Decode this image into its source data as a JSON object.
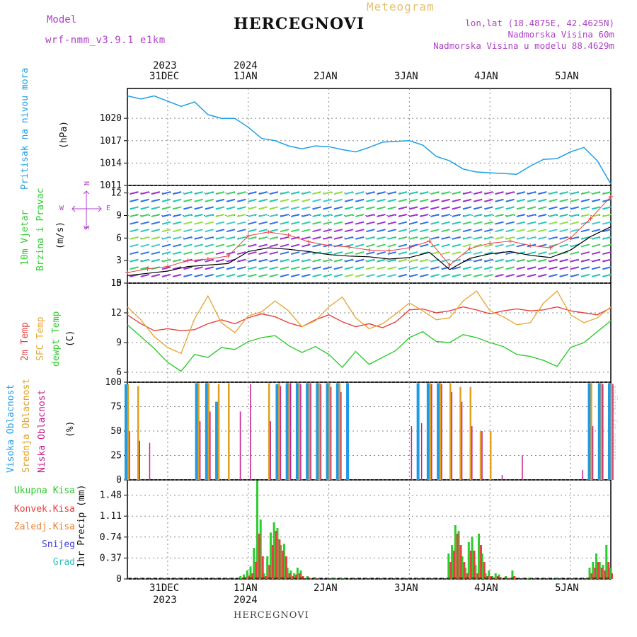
{
  "header": {
    "model_label": "Model",
    "model_name": "wrf-nmm_v3.9.1 e1km",
    "title": "HERCEGNOVI",
    "meteogram": "Meteogram",
    "lonlat": "lon,lat (18.4875E, 42.4625N)",
    "elevation": "Nadmorska Visina 60m",
    "model_elevation": "Nadmorska Visina u modelu 88.4629m",
    "watermark": "made by Angel",
    "footer_station": "HERCEGNOVI"
  },
  "colors": {
    "pressure": "#1ea0e6",
    "temp2m": "#e84040",
    "sfc_temp": "#e8a838",
    "dewpoint": "#2ecc2e",
    "high_cloud": "#1e9be6",
    "mid_cloud": "#e0a020",
    "low_cloud": "#c81e8c",
    "precip_total": "#2ecc2e",
    "precip_conv": "#e84040",
    "gust": "#e84040",
    "wind_speed": "#000000"
  },
  "time_axis": {
    "top_years": [
      "2023",
      "2024"
    ],
    "top_dates": [
      "31DEC",
      "1JAN",
      "2JAN",
      "3JAN",
      "4JAN",
      "5JAN"
    ],
    "bottom_dates": [
      "31DEC",
      "1JAN",
      "2JAN",
      "3JAN",
      "4JAN",
      "5JAN"
    ],
    "bottom_years": [
      "2023",
      "2024"
    ]
  },
  "panels": {
    "pressure": {
      "ylabel_main": "Pritisak na nivou mora",
      "ylabel_unit": "(hPa)",
      "ticks": [
        "1020",
        "1017",
        "1014",
        "1011"
      ]
    },
    "wind": {
      "ylabel_main": "10m Vjetar",
      "ylabel_sub": "Brzina i Pravac",
      "ylabel_unit": "(m/s)",
      "compass_n": "N",
      "compass_w": "W",
      "compass_e": "E",
      "compass_s": "S",
      "ticks": [
        "12",
        "9",
        "6",
        "3",
        "0"
      ]
    },
    "temp": {
      "ylabel_2m": "2m Temp",
      "ylabel_sfc": "SFC Temp",
      "ylabel_dew": "dewpt Temp",
      "ylabel_unit": "(C)",
      "ticks": [
        "15",
        "12",
        "9",
        "6"
      ]
    },
    "cloud": {
      "ylabel_high": "Visoka Oblacnost",
      "ylabel_mid": "Srednja Oblacnost",
      "ylabel_low": "Niska Oblacnost",
      "ylabel_unit": "(%)",
      "ticks": [
        "100",
        "75",
        "50",
        "25",
        "0"
      ]
    },
    "precip": {
      "legend_total": "Ukupna Kisa",
      "legend_conv": "Konvek.Kisa",
      "legend_frz": "Zaledj.Kisa",
      "legend_snow": "Snijeg",
      "legend_grad": "Grad",
      "ylabel": "1hr Precip (mm)",
      "ticks": [
        "1.48",
        "1.11",
        "0.74",
        "0.37",
        "0"
      ]
    }
  },
  "chart_data": [
    {
      "type": "line",
      "name": "pressure",
      "x_unit": "hours from 2023-12-30 12:00",
      "ylim": [
        1011,
        1024
      ],
      "x": [
        0,
        4,
        8,
        12,
        16,
        20,
        24,
        28,
        32,
        36,
        40,
        44,
        48,
        52,
        56,
        60,
        64,
        68,
        72,
        76,
        80,
        84,
        88,
        92,
        96,
        100,
        104,
        108,
        112,
        116,
        120,
        124,
        128,
        132,
        136,
        140,
        144
      ],
      "values": [
        1023.0,
        1022.6,
        1023.0,
        1022.3,
        1021.6,
        1022.2,
        1020.5,
        1020.0,
        1020.0,
        1018.8,
        1017.3,
        1017.0,
        1016.3,
        1015.9,
        1016.3,
        1016.2,
        1015.8,
        1015.5,
        1016.1,
        1016.8,
        1016.9,
        1017.0,
        1016.4,
        1014.9,
        1014.3,
        1013.2,
        1012.8,
        1012.7,
        1012.6,
        1012.5,
        1013.6,
        1014.5,
        1014.6,
        1015.5,
        1016.1,
        1014.3,
        1011.2
      ]
    },
    {
      "type": "line",
      "name": "wind",
      "ylim": [
        0,
        13
      ],
      "x": [
        0,
        6,
        12,
        18,
        24,
        30,
        36,
        42,
        48,
        54,
        60,
        66,
        72,
        78,
        84,
        90,
        96,
        102,
        108,
        114,
        120,
        126,
        132,
        138,
        144
      ],
      "series": [
        {
          "key": "wind_speed",
          "values": [
            1.0,
            1.3,
            1.6,
            2.2,
            2.4,
            2.6,
            4.2,
            4.7,
            4.5,
            4.2,
            3.8,
            3.6,
            3.5,
            3.2,
            3.4,
            4.1,
            1.8,
            3.3,
            3.9,
            4.2,
            3.7,
            3.4,
            4.4,
            6.2,
            7.5
          ]
        },
        {
          "key": "gust",
          "values": [
            1.4,
            1.9,
            2.2,
            3.0,
            3.2,
            3.6,
            6.3,
            6.8,
            6.4,
            5.5,
            5.0,
            4.8,
            4.4,
            4.3,
            4.7,
            5.6,
            2.4,
            4.6,
            5.3,
            5.6,
            5.0,
            4.7,
            6.0,
            8.6,
            11.5
          ]
        }
      ]
    },
    {
      "type": "line",
      "name": "temperature",
      "ylim": [
        5,
        15
      ],
      "x": [
        0,
        4,
        8,
        12,
        16,
        20,
        24,
        28,
        32,
        36,
        40,
        44,
        48,
        52,
        56,
        60,
        64,
        68,
        72,
        76,
        80,
        84,
        88,
        92,
        96,
        100,
        104,
        108,
        112,
        116,
        120,
        124,
        128,
        132,
        136,
        140,
        144
      ],
      "series": [
        {
          "key": "temp2m",
          "values": [
            11.8,
            10.9,
            10.2,
            10.4,
            10.2,
            10.3,
            10.9,
            11.3,
            10.9,
            11.5,
            11.9,
            11.6,
            11.0,
            10.6,
            11.3,
            11.8,
            11.1,
            10.6,
            10.9,
            10.5,
            11.1,
            12.3,
            12.4,
            12.0,
            12.2,
            12.6,
            12.3,
            11.9,
            12.2,
            12.4,
            12.2,
            12.3,
            12.6,
            12.2,
            12.0,
            11.8,
            12.5
          ]
        },
        {
          "key": "sfc_temp",
          "values": [
            12.6,
            11.3,
            9.6,
            8.5,
            7.9,
            11.4,
            13.7,
            11.0,
            10.0,
            11.7,
            12.1,
            13.2,
            12.2,
            10.6,
            11.2,
            12.6,
            13.6,
            11.5,
            10.4,
            10.9,
            11.9,
            13.0,
            12.2,
            11.3,
            11.5,
            13.2,
            14.2,
            12.2,
            11.6,
            10.8,
            11.0,
            13.0,
            14.2,
            11.8,
            11.0,
            11.5,
            12.6
          ]
        },
        {
          "key": "dewpoint",
          "values": [
            10.8,
            9.6,
            8.4,
            7.0,
            6.1,
            7.8,
            7.5,
            8.5,
            8.3,
            9.1,
            9.5,
            9.7,
            8.7,
            8.0,
            8.6,
            7.8,
            6.5,
            8.1,
            6.8,
            7.5,
            8.2,
            9.5,
            10.1,
            9.1,
            9.0,
            9.8,
            9.5,
            9.0,
            8.6,
            7.8,
            7.6,
            7.2,
            6.6,
            8.5,
            9.0,
            10.1,
            11.2
          ]
        }
      ]
    },
    {
      "type": "bar",
      "name": "cloud_cover",
      "ylim": [
        0,
        100
      ],
      "x": [
        0,
        3,
        6,
        9,
        12,
        15,
        18,
        21,
        24,
        27,
        30,
        33,
        36,
        39,
        42,
        45,
        48,
        51,
        54,
        57,
        60,
        63,
        66,
        69,
        72,
        75,
        78,
        81,
        84,
        87,
        90,
        93,
        96,
        99,
        102,
        105,
        108,
        111,
        114,
        117,
        120,
        123,
        126,
        129,
        132,
        135,
        138,
        141,
        144
      ],
      "series": [
        {
          "key": "high_cloud",
          "values": [
            98,
            0,
            0,
            0,
            0,
            0,
            0,
            99,
            99,
            80,
            0,
            0,
            0,
            0,
            0,
            98,
            99,
            99,
            99,
            99,
            99,
            99,
            99,
            0,
            0,
            0,
            0,
            0,
            0,
            99,
            99,
            99,
            0,
            0,
            0,
            0,
            0,
            0,
            0,
            0,
            0,
            0,
            0,
            0,
            0,
            0,
            99,
            99,
            99
          ]
        },
        {
          "key": "mid_cloud",
          "values": [
            98,
            96,
            0,
            0,
            0,
            0,
            0,
            99,
            99,
            98,
            99,
            0,
            0,
            0,
            99,
            99,
            99,
            99,
            99,
            99,
            99,
            99,
            0,
            0,
            0,
            0,
            0,
            0,
            0,
            0,
            99,
            99,
            99,
            95,
            95,
            50,
            50,
            0,
            0,
            0,
            0,
            0,
            0,
            0,
            0,
            0,
            99,
            99,
            99
          ]
        },
        {
          "key": "low_cloud",
          "values": [
            50,
            40,
            38,
            0,
            0,
            0,
            0,
            60,
            70,
            0,
            0,
            70,
            98,
            0,
            60,
            96,
            99,
            98,
            99,
            98,
            95,
            90,
            0,
            0,
            0,
            0,
            0,
            0,
            55,
            58,
            98,
            98,
            90,
            80,
            55,
            50,
            0,
            5,
            0,
            25,
            0,
            0,
            0,
            0,
            0,
            10,
            55,
            98,
            98
          ]
        }
      ]
    },
    {
      "type": "bar",
      "name": "precip_1hr",
      "ylim": [
        0,
        1.75
      ],
      "x": [
        34,
        35,
        36,
        37,
        38,
        39,
        40,
        41,
        42,
        43,
        44,
        45,
        46,
        47,
        48,
        49,
        50,
        51,
        52,
        54,
        56,
        62,
        64,
        96,
        97,
        98,
        99,
        100,
        101,
        102,
        103,
        104,
        105,
        106,
        107,
        108,
        109,
        110,
        111,
        113,
        115,
        120,
        128,
        138,
        139,
        140,
        141,
        142,
        143,
        144
      ],
      "series": [
        {
          "key": "precip_total",
          "values": [
            0.05,
            0.08,
            0.15,
            0.22,
            0.55,
            1.74,
            1.05,
            0.1,
            0.4,
            0.82,
            1.0,
            0.9,
            0.6,
            0.62,
            0.2,
            0.15,
            0.1,
            0.2,
            0.15,
            0.05,
            0.03,
            0.02,
            0.02,
            0.45,
            0.6,
            0.95,
            0.85,
            0.4,
            0.2,
            0.65,
            0.75,
            0.25,
            0.8,
            0.45,
            0.1,
            0.15,
            0.05,
            0.1,
            0.08,
            0.05,
            0.15,
            0.02,
            0.02,
            0.2,
            0.3,
            0.45,
            0.3,
            0.25,
            0.6,
            0.2
          ]
        },
        {
          "key": "precip_conv",
          "values": [
            0.02,
            0.03,
            0.06,
            0.1,
            0.3,
            0.8,
            0.4,
            0.05,
            0.25,
            0.6,
            0.85,
            0.7,
            0.5,
            0.4,
            0.1,
            0.05,
            0.08,
            0.1,
            0.05,
            0.02,
            0.01,
            0.0,
            0.0,
            0.3,
            0.5,
            0.8,
            0.6,
            0.3,
            0.1,
            0.5,
            0.5,
            0.1,
            0.6,
            0.3,
            0.05,
            0.05,
            0.02,
            0.05,
            0.03,
            0.02,
            0.05,
            0.0,
            0.0,
            0.1,
            0.2,
            0.3,
            0.2,
            0.15,
            0.3,
            0.1
          ]
        }
      ]
    }
  ]
}
